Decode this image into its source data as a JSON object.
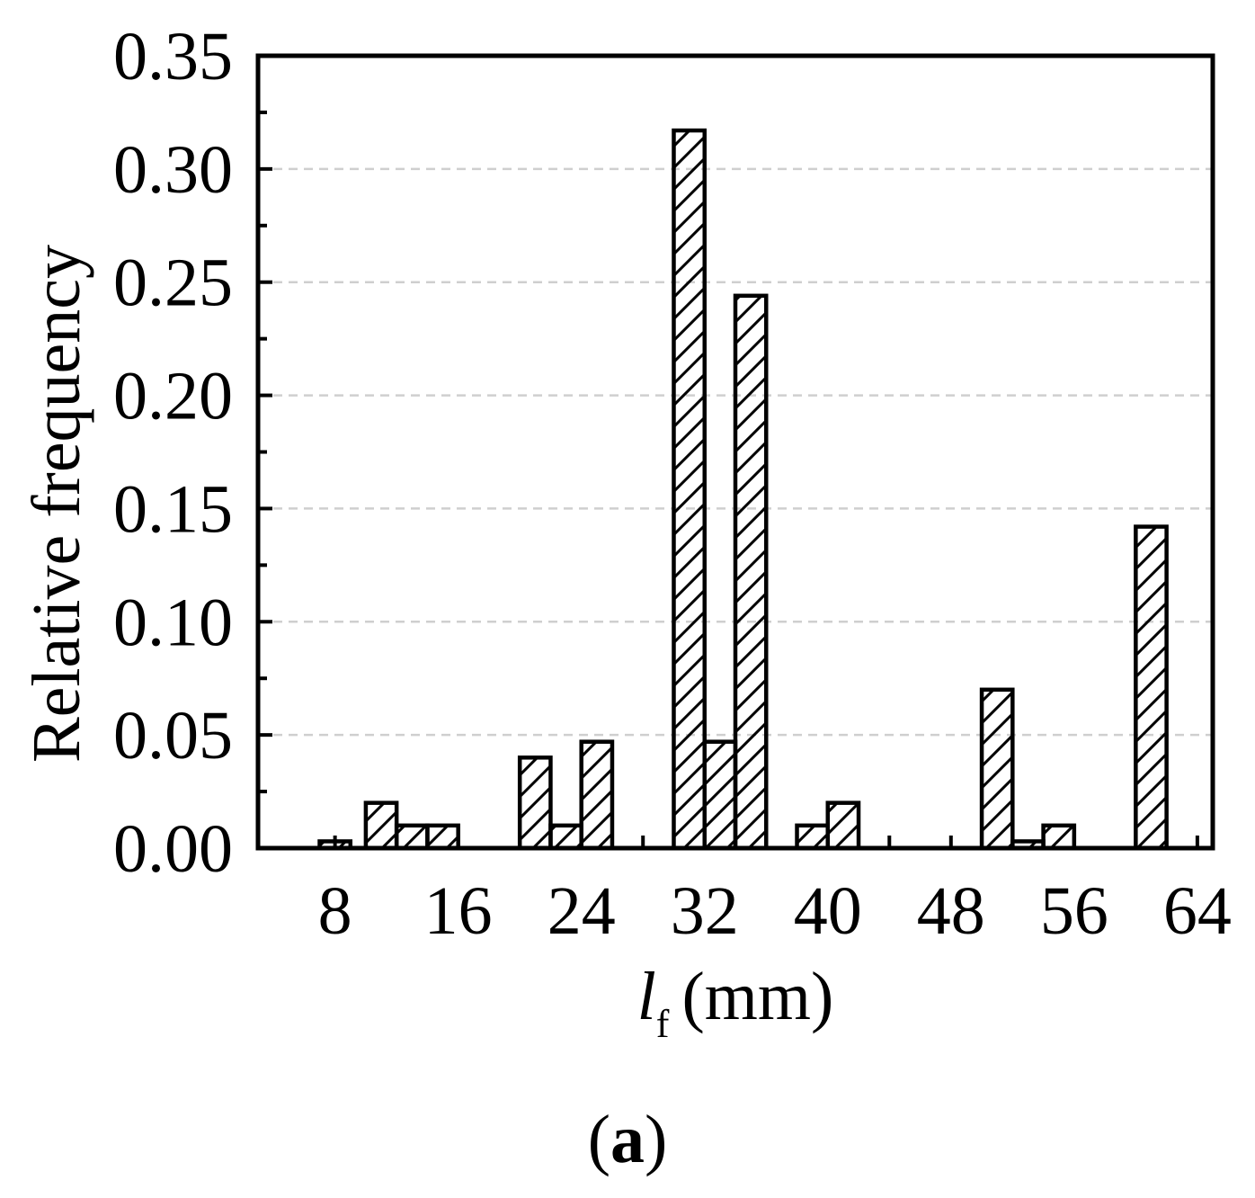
{
  "chart_data": {
    "type": "bar",
    "ylabel": "Relative frequency",
    "xlabel": {
      "symbol": "l",
      "subscript": "f",
      "unit": "(mm)"
    },
    "ylim": [
      0,
      0.35
    ],
    "xlim": [
      3,
      65
    ],
    "yticks": [
      "0.00",
      "0.05",
      "0.10",
      "0.15",
      "0.20",
      "0.25",
      "0.30",
      "0.35"
    ],
    "yminor_step": 0.025,
    "xticks": [
      "8",
      "16",
      "24",
      "32",
      "40",
      "48",
      "56",
      "64"
    ],
    "x_minor_ticks": [
      28,
      44
    ],
    "grid": "horizontal dashed",
    "hatch": "diagonal",
    "bar_width": 2,
    "bars": [
      {
        "x": 8,
        "value": 0.003
      },
      {
        "x": 11,
        "value": 0.02
      },
      {
        "x": 13,
        "value": 0.01
      },
      {
        "x": 15,
        "value": 0.01
      },
      {
        "x": 21,
        "value": 0.04
      },
      {
        "x": 23,
        "value": 0.01
      },
      {
        "x": 25,
        "value": 0.047
      },
      {
        "x": 31,
        "value": 0.317
      },
      {
        "x": 33,
        "value": 0.047
      },
      {
        "x": 35,
        "value": 0.244
      },
      {
        "x": 39,
        "value": 0.01
      },
      {
        "x": 41,
        "value": 0.02
      },
      {
        "x": 51,
        "value": 0.07
      },
      {
        "x": 53,
        "value": 0.003
      },
      {
        "x": 55,
        "value": 0.01
      },
      {
        "x": 61,
        "value": 0.142
      }
    ]
  },
  "panel_label": {
    "open": "(",
    "letter": "a",
    "close": ")"
  }
}
